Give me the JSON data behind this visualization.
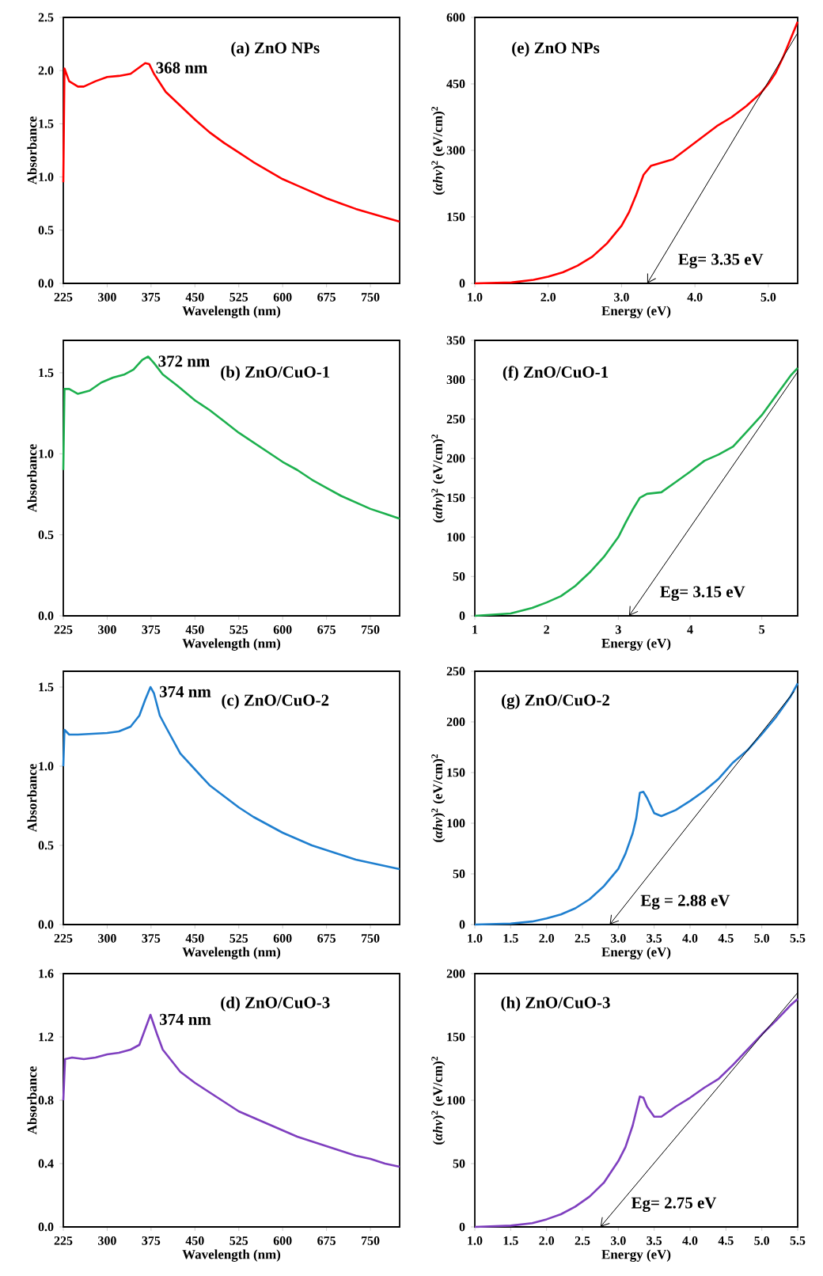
{
  "chart_data": [
    {
      "type": "line",
      "title": "(a) ZnO NPs",
      "xlabel": "Wavelength (nm)",
      "ylabel": "Absorbance",
      "xlim": [
        225,
        800
      ],
      "ylim": [
        0,
        2.5
      ],
      "xticks": [
        225,
        300,
        375,
        450,
        525,
        600,
        675,
        750
      ],
      "yticks": [
        {
          "value": 0,
          "label": "0.0"
        },
        {
          "value": 0.5,
          "label": "0.5"
        },
        {
          "value": 1,
          "label": "1.0"
        },
        {
          "value": 1.5,
          "label": "1.5"
        },
        {
          "value": 2,
          "label": "2.0"
        },
        {
          "value": 2.5,
          "label": "2.5"
        }
      ],
      "annotations": [
        {
          "text": "368 nm",
          "x": 368,
          "y": 2.07
        }
      ],
      "series": [
        {
          "color": "#ff0000",
          "x": [
            225,
            227,
            235,
            250,
            260,
            280,
            300,
            320,
            340,
            355,
            365,
            372,
            380,
            400,
            425,
            450,
            475,
            500,
            525,
            550,
            575,
            600,
            625,
            650,
            675,
            700,
            725,
            750,
            775,
            800
          ],
          "values": [
            0.95,
            2.02,
            1.9,
            1.85,
            1.85,
            1.9,
            1.94,
            1.95,
            1.97,
            2.03,
            2.07,
            2.06,
            1.97,
            1.8,
            1.67,
            1.54,
            1.42,
            1.32,
            1.23,
            1.14,
            1.06,
            0.98,
            0.92,
            0.86,
            0.8,
            0.75,
            0.7,
            0.66,
            0.62,
            0.58
          ]
        }
      ]
    },
    {
      "type": "line",
      "title": "(e) ZnO NPs",
      "xlabel": "Energy (eV)",
      "ylabel": "(*αhν*)$^{2}$ (eV/cm)$^{2}$",
      "xlim": [
        1,
        5.4
      ],
      "ylim": [
        0,
        600
      ],
      "xticks": [
        {
          "value": 1,
          "label": "1.0"
        },
        {
          "value": 2,
          "label": "2.0"
        },
        {
          "value": 3,
          "label": "3.0"
        },
        {
          "value": 4,
          "label": "4.0"
        },
        {
          "value": 5,
          "label": "5.0"
        }
      ],
      "yticks": [
        0,
        150,
        300,
        450,
        600
      ],
      "annotations": [
        {
          "text": "Eg= 3.35 eV",
          "x": 3.35,
          "y": 0
        }
      ],
      "series": [
        {
          "color": "#ff0000",
          "x": [
            1.0,
            1.5,
            1.8,
            2.0,
            2.2,
            2.4,
            2.6,
            2.8,
            3.0,
            3.1,
            3.2,
            3.3,
            3.4,
            3.5,
            3.7,
            3.9,
            4.1,
            4.3,
            4.5,
            4.7,
            4.9,
            5.0,
            5.1,
            5.2,
            5.3,
            5.4
          ],
          "values": [
            0,
            2,
            8,
            15,
            25,
            40,
            60,
            90,
            130,
            160,
            200,
            245,
            265,
            270,
            280,
            305,
            330,
            355,
            375,
            400,
            430,
            450,
            475,
            510,
            550,
            590
          ]
        },
        {
          "type": "line",
          "color": "#000000",
          "x": [
            3.35,
            5.4
          ],
          "values": [
            0,
            565
          ]
        }
      ]
    },
    {
      "type": "line",
      "title": "(b) ZnO/CuO-1",
      "xlabel": "Wavelength (nm)",
      "ylabel": "Absorbance",
      "xlim": [
        225,
        800
      ],
      "ylim": [
        0,
        1.7
      ],
      "xticks": [
        225,
        300,
        375,
        450,
        525,
        600,
        675,
        750
      ],
      "yticks": [
        {
          "value": 0,
          "label": "0.0"
        },
        {
          "value": 0.5,
          "label": "0.5"
        },
        {
          "value": 1,
          "label": "1.0"
        },
        {
          "value": 1.5,
          "label": "1.5"
        }
      ],
      "annotations": [
        {
          "text": "372 nm",
          "x": 372,
          "y": 1.6
        }
      ],
      "series": [
        {
          "color": "#1db04e",
          "x": [
            225,
            227,
            235,
            250,
            270,
            290,
            310,
            330,
            345,
            360,
            370,
            380,
            395,
            420,
            450,
            475,
            500,
            525,
            550,
            575,
            600,
            625,
            650,
            675,
            700,
            725,
            750,
            775,
            800
          ],
          "values": [
            0.9,
            1.4,
            1.4,
            1.37,
            1.39,
            1.44,
            1.47,
            1.49,
            1.52,
            1.58,
            1.6,
            1.56,
            1.49,
            1.42,
            1.33,
            1.27,
            1.2,
            1.13,
            1.07,
            1.01,
            0.95,
            0.9,
            0.84,
            0.79,
            0.74,
            0.7,
            0.66,
            0.63,
            0.6
          ]
        }
      ]
    },
    {
      "type": "line",
      "title": "(f) ZnO/CuO-1",
      "xlabel": "Energy (eV)",
      "ylabel": "(*αhν*)$^{2}$ (eV/cm)$^{2}$",
      "xlim": [
        1,
        5.5
      ],
      "ylim": [
        0,
        350
      ],
      "xticks": [
        1,
        2,
        3,
        4,
        5
      ],
      "yticks": [
        0,
        50,
        100,
        150,
        200,
        250,
        300,
        350
      ],
      "annotations": [
        {
          "text": "Eg= 3.15 eV",
          "x": 3.15,
          "y": 0
        }
      ],
      "series": [
        {
          "color": "#1db04e",
          "x": [
            1.0,
            1.5,
            1.8,
            2.0,
            2.2,
            2.4,
            2.6,
            2.8,
            3.0,
            3.1,
            3.2,
            3.3,
            3.4,
            3.6,
            3.8,
            4.0,
            4.2,
            4.4,
            4.6,
            4.8,
            5.0,
            5.2,
            5.4,
            5.5
          ],
          "values": [
            0,
            3,
            10,
            17,
            25,
            38,
            55,
            75,
            100,
            118,
            135,
            150,
            155,
            157,
            170,
            183,
            197,
            205,
            215,
            235,
            255,
            280,
            305,
            315
          ]
        },
        {
          "type": "line",
          "color": "#000000",
          "x": [
            3.15,
            5.5
          ],
          "values": [
            0,
            310
          ]
        }
      ]
    },
    {
      "type": "line",
      "title": "(c) ZnO/CuO-2",
      "xlabel": "Wavelength (nm)",
      "ylabel": "Absorbance",
      "xlim": [
        225,
        800
      ],
      "ylim": [
        0,
        1.6
      ],
      "xticks": [
        225,
        300,
        375,
        450,
        525,
        600,
        675,
        750
      ],
      "yticks": [
        {
          "value": 0,
          "label": "0.0"
        },
        {
          "value": 0.5,
          "label": "0.5"
        },
        {
          "value": 1,
          "label": "1.0"
        },
        {
          "value": 1.5,
          "label": "1.5"
        }
      ],
      "annotations": [
        {
          "text": "374 nm",
          "x": 374,
          "y": 1.5
        }
      ],
      "series": [
        {
          "color": "#1f7fcf",
          "x": [
            225,
            227,
            235,
            250,
            300,
            320,
            340,
            355,
            365,
            374,
            380,
            390,
            400,
            425,
            450,
            475,
            500,
            525,
            550,
            575,
            600,
            625,
            650,
            675,
            700,
            725,
            750,
            775,
            800
          ],
          "values": [
            1.0,
            1.23,
            1.2,
            1.2,
            1.21,
            1.22,
            1.25,
            1.32,
            1.42,
            1.5,
            1.46,
            1.32,
            1.25,
            1.08,
            0.98,
            0.88,
            0.81,
            0.74,
            0.68,
            0.63,
            0.58,
            0.54,
            0.5,
            0.47,
            0.44,
            0.41,
            0.39,
            0.37,
            0.35
          ]
        }
      ]
    },
    {
      "type": "line",
      "title": "(g) ZnO/CuO-2",
      "xlabel": "Energy (eV)",
      "ylabel": "(*αhν*)$^{2}$ (eV/cm)$^{2}$",
      "xlim": [
        1,
        5.5
      ],
      "ylim": [
        0,
        250
      ],
      "xticks": [
        {
          "value": 1,
          "label": "1.0"
        },
        {
          "value": 1.5,
          "label": "1.5"
        },
        {
          "value": 2,
          "label": "2.0"
        },
        {
          "value": 2.5,
          "label": "2.5"
        },
        {
          "value": 3,
          "label": "3.0"
        },
        {
          "value": 3.5,
          "label": "3.5"
        },
        {
          "value": 4,
          "label": "4.0"
        },
        {
          "value": 4.5,
          "label": "4.5"
        },
        {
          "value": 5,
          "label": "5.0"
        },
        {
          "value": 5.5,
          "label": "5.5"
        }
      ],
      "yticks": [
        0,
        50,
        100,
        150,
        200,
        250
      ],
      "annotations": [
        {
          "text": "Eg = 2.88 eV",
          "x": 2.88,
          "y": 0
        }
      ],
      "series": [
        {
          "color": "#1f7fcf",
          "x": [
            1.0,
            1.5,
            1.8,
            2.0,
            2.2,
            2.4,
            2.6,
            2.8,
            3.0,
            3.1,
            3.2,
            3.25,
            3.3,
            3.35,
            3.4,
            3.5,
            3.6,
            3.8,
            4.0,
            4.2,
            4.4,
            4.6,
            4.8,
            5.0,
            5.2,
            5.4,
            5.5
          ],
          "values": [
            0,
            1,
            3,
            6,
            10,
            16,
            25,
            38,
            55,
            70,
            90,
            105,
            130,
            131,
            125,
            110,
            107,
            113,
            122,
            132,
            144,
            160,
            172,
            188,
            205,
            225,
            238
          ]
        },
        {
          "type": "line",
          "color": "#000000",
          "x": [
            2.88,
            5.45
          ],
          "values": [
            0,
            230
          ]
        }
      ]
    },
    {
      "type": "line",
      "title": "(d) ZnO/CuO-3",
      "xlabel": "Wavelength (nm)",
      "ylabel": "Absorbance",
      "xlim": [
        225,
        800
      ],
      "ylim": [
        0,
        1.6
      ],
      "xticks": [
        225,
        300,
        375,
        450,
        525,
        600,
        675,
        750
      ],
      "yticks": [
        {
          "value": 0,
          "label": "0.0"
        },
        {
          "value": 0.4,
          "label": "0.4"
        },
        {
          "value": 0.8,
          "label": "0.8"
        },
        {
          "value": 1.2,
          "label": "1.2"
        },
        {
          "value": 1.6,
          "label": "1.6"
        }
      ],
      "annotations": [
        {
          "text": "374 nm",
          "x": 374,
          "y": 1.34
        }
      ],
      "series": [
        {
          "color": "#7f3fbf",
          "x": [
            225,
            228,
            240,
            260,
            280,
            300,
            320,
            340,
            355,
            365,
            374,
            385,
            395,
            425,
            450,
            475,
            500,
            525,
            550,
            575,
            600,
            625,
            650,
            675,
            700,
            725,
            750,
            775,
            800
          ],
          "values": [
            0.8,
            1.06,
            1.07,
            1.06,
            1.07,
            1.09,
            1.1,
            1.12,
            1.15,
            1.25,
            1.34,
            1.22,
            1.12,
            0.98,
            0.91,
            0.85,
            0.79,
            0.73,
            0.69,
            0.65,
            0.61,
            0.57,
            0.54,
            0.51,
            0.48,
            0.45,
            0.43,
            0.4,
            0.38
          ]
        }
      ]
    },
    {
      "type": "line",
      "title": "(h) ZnO/CuO-3",
      "xlabel": "Energy (eV)",
      "ylabel": "(*αhν*)$^{2}$ (eV/cm)$^{2}$",
      "xlim": [
        1,
        5.5
      ],
      "ylim": [
        0,
        200
      ],
      "xticks": [
        {
          "value": 1,
          "label": "1.0"
        },
        {
          "value": 1.5,
          "label": "1.5"
        },
        {
          "value": 2,
          "label": "2.0"
        },
        {
          "value": 2.5,
          "label": "2.5"
        },
        {
          "value": 3,
          "label": "3.0"
        },
        {
          "value": 3.5,
          "label": "3.5"
        },
        {
          "value": 4,
          "label": "4.0"
        },
        {
          "value": 4.5,
          "label": "4.5"
        },
        {
          "value": 5,
          "label": "5.0"
        },
        {
          "value": 5.5,
          "label": "5.5"
        }
      ],
      "yticks": [
        0,
        50,
        100,
        150,
        200
      ],
      "annotations": [
        {
          "text": "Eg= 2.75 eV",
          "x": 2.75,
          "y": 0
        }
      ],
      "series": [
        {
          "color": "#7f3fbf",
          "x": [
            1.0,
            1.5,
            1.8,
            2.0,
            2.2,
            2.4,
            2.6,
            2.8,
            3.0,
            3.1,
            3.2,
            3.3,
            3.35,
            3.4,
            3.5,
            3.6,
            3.8,
            4.0,
            4.2,
            4.4,
            4.6,
            4.8,
            5.0,
            5.2,
            5.4,
            5.5
          ],
          "values": [
            0,
            1,
            3,
            6,
            10,
            16,
            24,
            35,
            52,
            63,
            80,
            103,
            102,
            95,
            87,
            87,
            95,
            102,
            110,
            117,
            128,
            140,
            152,
            163,
            175,
            180
          ]
        },
        {
          "type": "line",
          "color": "#000000",
          "x": [
            2.75,
            5.5
          ],
          "values": [
            0,
            185
          ]
        }
      ]
    }
  ]
}
